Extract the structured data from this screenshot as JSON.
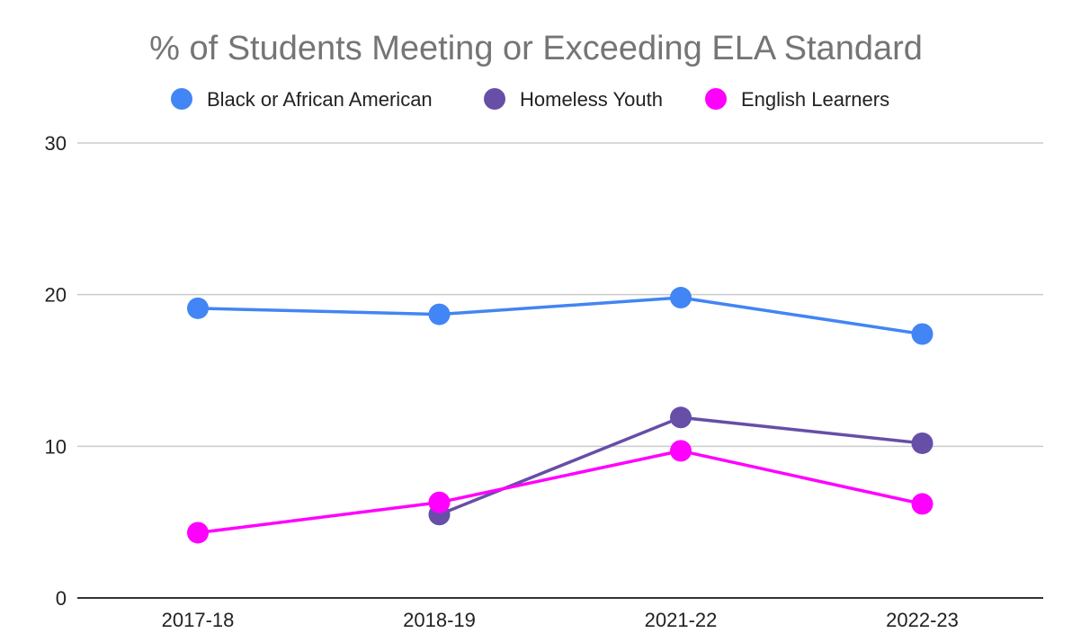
{
  "chart_data": {
    "type": "line",
    "title": "% of Students Meeting or Exceeding ELA Standard",
    "xlabel": "",
    "ylabel": "",
    "categories": [
      "2017-18",
      "2018-19",
      "2021-22",
      "2022-23"
    ],
    "ylim": [
      0,
      30
    ],
    "yticks": [
      0,
      10,
      20,
      30
    ],
    "grid": true,
    "legend_position": "top",
    "series": [
      {
        "name": "Black or African American",
        "color": "#4285f4",
        "values": [
          19.1,
          18.7,
          19.8,
          17.4
        ]
      },
      {
        "name": "Homeless Youth",
        "color": "#674ea7",
        "values": [
          null,
          5.5,
          11.9,
          10.2
        ]
      },
      {
        "name": "English Learners",
        "color": "#ff00ff",
        "values": [
          4.3,
          6.3,
          9.7,
          6.2
        ]
      }
    ]
  }
}
